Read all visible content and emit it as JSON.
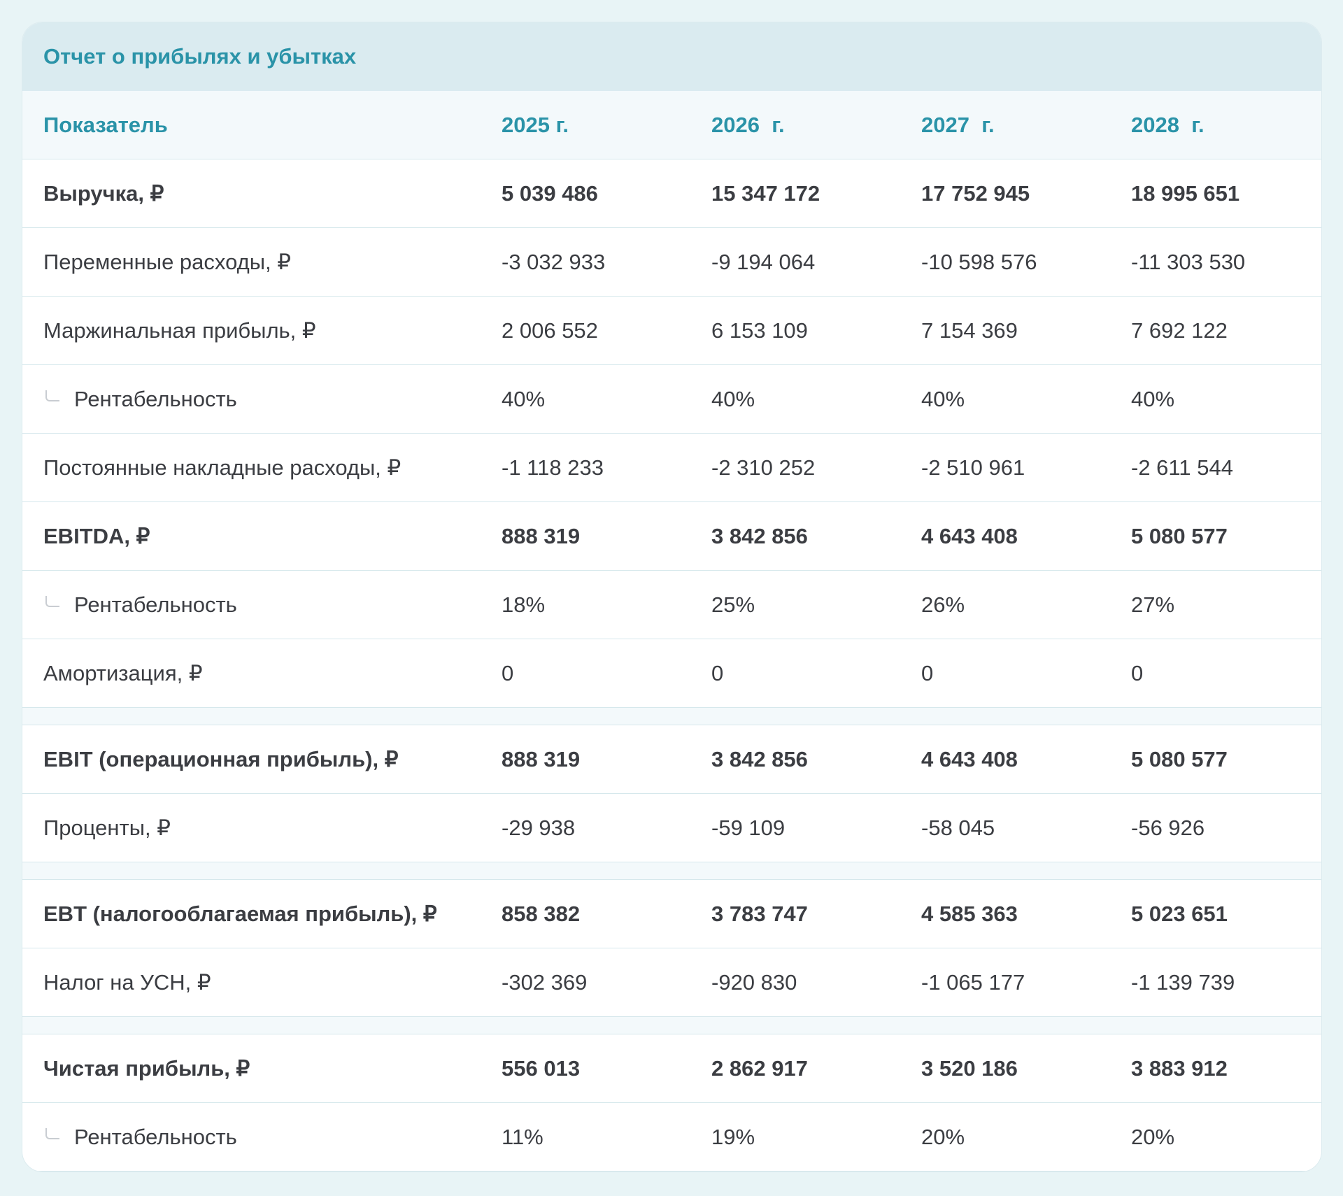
{
  "title": "Отчет о прибылях и убытках",
  "columns": [
    "Показатель",
    "2025 г.",
    "2026  г.",
    "2027  г.",
    "2028  г."
  ],
  "rows": [
    {
      "label": "Выручка, ₽",
      "values": [
        "5 039 486",
        "15 347 172",
        "17 752 945",
        "18 995 651"
      ],
      "bold": true
    },
    {
      "label": "Переменные расходы, ₽",
      "values": [
        "-3 032 933",
        "-9 194 064",
        "-10 598 576",
        "-11 303 530"
      ]
    },
    {
      "label": "Маржинальная прибыль, ₽",
      "values": [
        "2 006 552",
        "6 153 109",
        "7 154 369",
        "7 692 122"
      ]
    },
    {
      "label": "Рентабельность",
      "values": [
        "40%",
        "40%",
        "40%",
        "40%"
      ],
      "sub": true
    },
    {
      "label": "Постоянные накладные расходы, ₽",
      "values": [
        "-1 118 233",
        "-2 310 252",
        "-2 510 961",
        "-2 611 544"
      ]
    },
    {
      "label": "EBITDA, ₽",
      "values": [
        "888 319",
        "3 842 856",
        "4 643 408",
        "5 080 577"
      ],
      "bold": true
    },
    {
      "label": "Рентабельность",
      "values": [
        "18%",
        "25%",
        "26%",
        "27%"
      ],
      "sub": true
    },
    {
      "label": "Амортизация, ₽",
      "values": [
        "0",
        "0",
        "0",
        "0"
      ],
      "spacer_after": true
    },
    {
      "label": "EBIT (операционная прибыль), ₽",
      "values": [
        "888 319",
        "3 842 856",
        "4 643 408",
        "5 080 577"
      ],
      "bold": true
    },
    {
      "label": "Проценты, ₽",
      "values": [
        "-29 938",
        "-59 109",
        "-58 045",
        "-56 926"
      ],
      "spacer_after": true
    },
    {
      "label": "EBT (налогооблагаемая прибыль), ₽",
      "values": [
        "858 382",
        "3 783 747",
        "4 585 363",
        "5 023 651"
      ],
      "bold": true
    },
    {
      "label": "Налог на УСН, ₽",
      "values": [
        "-302 369",
        "-920 830",
        "-1 065 177",
        "-1 139 739"
      ],
      "spacer_after": true
    },
    {
      "label": "Чистая прибыль, ₽",
      "values": [
        "556 013",
        "2 862 917",
        "3 520 186",
        "3 883 912"
      ],
      "bold": true
    },
    {
      "label": "Рентабельность",
      "values": [
        "11%",
        "19%",
        "20%",
        "20%"
      ],
      "sub": true
    }
  ],
  "colors": {
    "accent": "#2a93a8",
    "title_band": "#daebf0",
    "header_bg": "#f3f9fb",
    "page_bg": "#e8f4f6",
    "text": "#3b3d42"
  }
}
